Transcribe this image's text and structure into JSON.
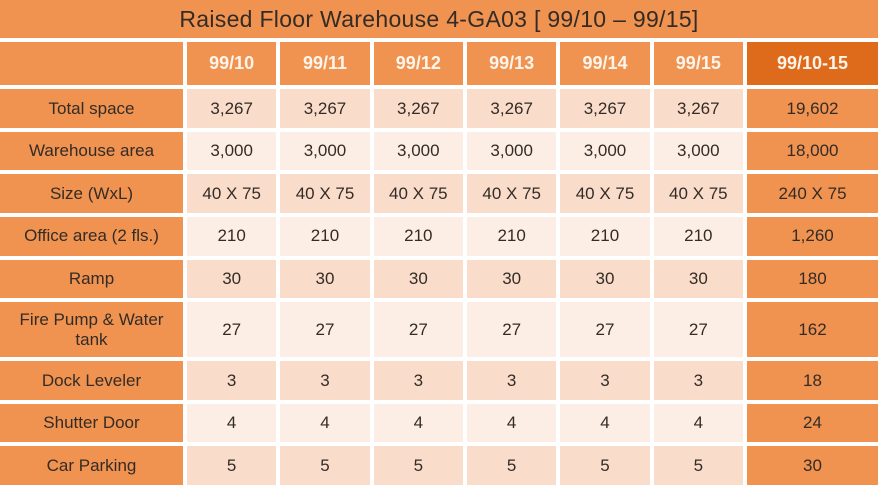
{
  "chart_data": {
    "type": "table",
    "title": "Raised Floor Warehouse 4-GA03  [ 99/10 – 99/15]",
    "columns": [
      "",
      "99/10",
      "99/11",
      "99/12",
      "99/13",
      "99/14",
      "99/15",
      "99/10-15"
    ],
    "rows": [
      {
        "label": "Total space",
        "values": [
          "3,267",
          "3,267",
          "3,267",
          "3,267",
          "3,267",
          "3,267"
        ],
        "total": "19,602"
      },
      {
        "label": "Warehouse area",
        "values": [
          "3,000",
          "3,000",
          "3,000",
          "3,000",
          "3,000",
          "3,000"
        ],
        "total": "18,000"
      },
      {
        "label": "Size (WxL)",
        "values": [
          "40 X 75",
          "40 X 75",
          "40 X 75",
          "40 X 75",
          "40 X 75",
          "40 X 75"
        ],
        "total": "240 X 75"
      },
      {
        "label": "Office area (2 fls.)",
        "values": [
          "210",
          "210",
          "210",
          "210",
          "210",
          "210"
        ],
        "total": "1,260"
      },
      {
        "label": "Ramp",
        "values": [
          "30",
          "30",
          "30",
          "30",
          "30",
          "30"
        ],
        "total": "180"
      },
      {
        "label": "Fire Pump & Water tank",
        "values": [
          "27",
          "27",
          "27",
          "27",
          "27",
          "27"
        ],
        "total": "162"
      },
      {
        "label": "Dock Leveler",
        "values": [
          "3",
          "3",
          "3",
          "3",
          "3",
          "3"
        ],
        "total": "18"
      },
      {
        "label": "Shutter Door",
        "values": [
          "4",
          "4",
          "4",
          "4",
          "4",
          "4"
        ],
        "total": "24"
      },
      {
        "label": "Car Parking",
        "values": [
          "5",
          "5",
          "5",
          "5",
          "5",
          "5"
        ],
        "total": "30"
      }
    ],
    "layout": {
      "grid": "off",
      "alternating_row_shading": true,
      "total_column_position": "right"
    }
  },
  "colors": {
    "orange": "#F09250",
    "dark_orange": "#DE6B1B",
    "row_pink_dark": "#FADCCB",
    "row_pink_light": "#FDEEE5",
    "text": "#332C26",
    "header_text": "#FDF5EC"
  }
}
